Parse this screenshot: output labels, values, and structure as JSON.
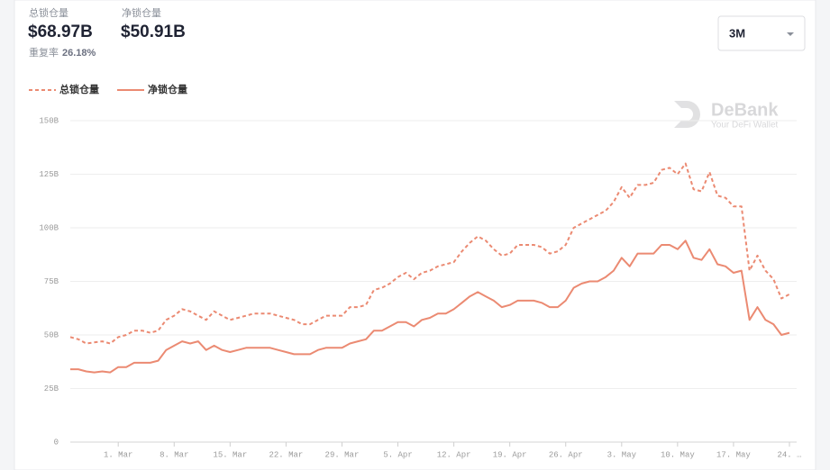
{
  "stats": [
    {
      "label": "总锁仓量",
      "value": "$68.97B"
    },
    {
      "label": "净锁仓量",
      "value": "$50.91B"
    }
  ],
  "ratio": {
    "label": "重复率",
    "value": "26.18%"
  },
  "range_select": "3M",
  "watermark": {
    "name": "DeBank",
    "tagline": "Your DeFi Wallet"
  },
  "chart_data": {
    "type": "line",
    "categories": [
      null,
      null,
      null,
      null,
      null,
      null,
      "1. Mar",
      null,
      null,
      null,
      null,
      null,
      null,
      "8. Mar",
      null,
      null,
      null,
      null,
      null,
      null,
      "15. Mar",
      null,
      null,
      null,
      null,
      null,
      null,
      "22. Mar",
      null,
      null,
      null,
      null,
      null,
      null,
      "29. Mar",
      null,
      null,
      null,
      null,
      null,
      null,
      "5. Apr",
      null,
      null,
      null,
      null,
      null,
      null,
      "12. Apr",
      null,
      null,
      null,
      null,
      null,
      null,
      "19. Apr",
      null,
      null,
      null,
      null,
      null,
      null,
      "26. Apr",
      null,
      null,
      null,
      null,
      null,
      null,
      "3. May",
      null,
      null,
      null,
      null,
      null,
      null,
      "10. May",
      null,
      null,
      null,
      null,
      null,
      null,
      "17. May",
      null,
      null,
      null,
      null,
      null,
      null,
      "24. …"
    ],
    "series": [
      {
        "name": "总锁仓量",
        "color": "#eb8a72",
        "style": "dashed",
        "values": [
          49,
          48,
          46,
          46.5,
          47,
          46,
          49,
          50,
          52,
          52,
          51,
          52,
          57,
          59,
          62,
          61,
          59,
          57,
          61,
          59,
          57,
          58,
          59,
          60,
          60,
          60,
          59,
          58,
          57,
          55,
          55,
          57,
          59,
          59,
          59,
          63,
          63,
          64,
          71,
          72,
          74,
          77,
          79,
          76,
          79,
          80,
          82,
          83,
          84,
          89,
          93,
          96,
          94,
          90,
          87,
          88,
          92,
          92,
          92,
          91,
          88,
          89,
          92,
          100,
          102,
          104,
          106,
          108,
          112,
          119,
          114,
          120,
          120,
          121,
          127,
          128,
          125,
          130,
          118,
          117,
          126,
          115,
          114,
          110,
          110,
          80,
          87,
          80,
          76,
          67,
          69
        ]
      },
      {
        "name": "净锁仓量",
        "color": "#eb8a72",
        "style": "solid",
        "values": [
          34,
          34,
          33,
          32.5,
          33,
          32.5,
          35,
          35,
          37,
          37,
          37,
          38,
          43,
          45,
          47,
          46,
          47,
          43,
          45,
          43,
          42,
          43,
          44,
          44,
          44,
          44,
          43,
          42,
          41,
          41,
          41,
          43,
          44,
          44,
          44,
          46,
          47,
          48,
          52,
          52,
          54,
          56,
          56,
          54,
          57,
          58,
          60,
          60,
          62,
          65,
          68,
          70,
          68,
          66,
          63,
          64,
          66,
          66,
          66,
          65,
          63,
          63,
          66,
          72,
          74,
          75,
          75,
          77,
          80,
          86,
          82,
          88,
          88,
          88,
          92,
          92,
          90,
          94,
          86,
          85,
          90,
          83,
          82,
          79,
          80,
          57,
          63,
          57,
          55,
          50,
          51
        ]
      }
    ],
    "ylim": [
      0,
      150
    ],
    "yticks": [
      0,
      {
        "value": 25,
        "label": "25B"
      },
      {
        "value": 50,
        "label": "50B"
      },
      {
        "value": 75,
        "label": "75B"
      },
      {
        "value": 100,
        "label": "100B"
      },
      {
        "value": 125,
        "label": "125B"
      },
      {
        "value": 150,
        "label": "150B"
      }
    ],
    "grid": true
  }
}
